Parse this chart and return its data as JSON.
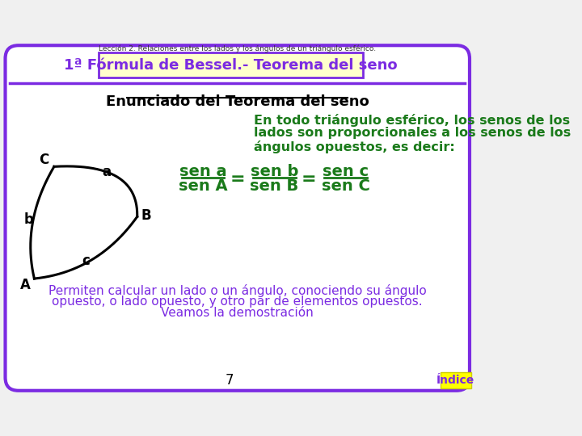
{
  "bg_color": "#f0f0f0",
  "border_color": "#7b2be2",
  "title_top": "Lección 2. Relaciones entre los lados y los ángulos de un triángulo esférico.",
  "box_title": "1ª Fórmula de Bessel.- Teorema del seno",
  "box_bg": "#ffffcc",
  "section_title": "Enunciado del Teorema del seno",
  "green_color": "#1a7a1a",
  "purple_color": "#7b2be2",
  "text_line1": "En todo triángulo esférico, los senos de los",
  "text_line2": "lados son proporcionales a los senos de los",
  "text_line3": "ángulos opuestos, es decir:",
  "bottom_text1": "Permiten calcular un lado o un ángulo, conociendo su ángulo",
  "bottom_text2": "opuesto, o lado opuesto, y otro par de elementos opuestos.",
  "bottom_text3": "Veamos la demostración",
  "page_number": "7",
  "indice_text": "Índice",
  "indice_bg": "#ffff00"
}
